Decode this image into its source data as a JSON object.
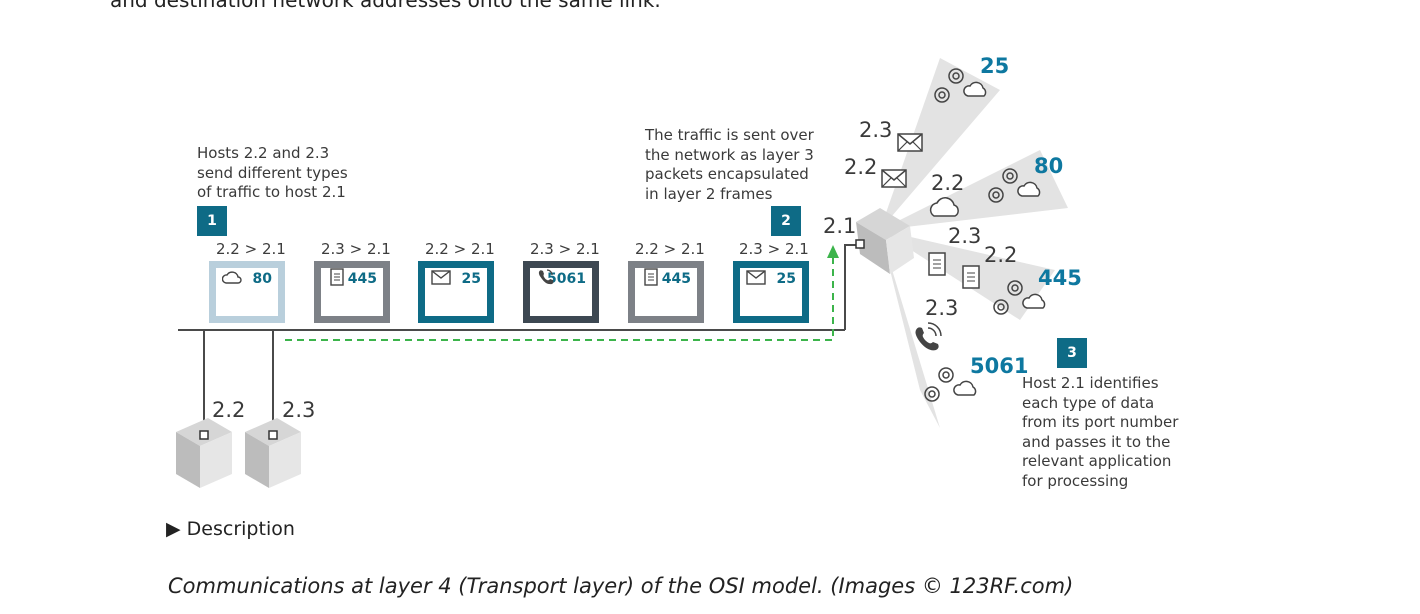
{
  "intro": "and destination network addresses onto the same link.",
  "annotations": {
    "step1": "Hosts 2.2 and 2.3\nsend different types\nof traffic to host 2.1",
    "step2": "The traffic is sent over\nthe network as layer 3\npackets encapsulated\nin layer 2 frames",
    "step3": "Host 2.1 identifies\neach type of data\nfrom its port number\nand passes it to the\nrelevant application\nfor processing"
  },
  "badges": [
    "1",
    "2",
    "3"
  ],
  "frames": [
    {
      "header": "2.2 > 2.1",
      "port": "80",
      "icon": "cloud-icon",
      "color": "#b9cfdc"
    },
    {
      "header": "2.3 > 2.1",
      "port": "445",
      "icon": "document-icon",
      "color": "#7d8187"
    },
    {
      "header": "2.2 > 2.1",
      "port": "25",
      "icon": "envelope-icon",
      "color": "#0e6b86"
    },
    {
      "header": "2.3 > 2.1",
      "port": "5061",
      "icon": "phone-icon",
      "color": "#3d4852"
    },
    {
      "header": "2.2 > 2.1",
      "port": "445",
      "icon": "document-icon",
      "color": "#7d8187"
    },
    {
      "header": "2.3 > 2.1",
      "port": "25",
      "icon": "envelope-icon",
      "color": "#0e6b86"
    }
  ],
  "hosts": {
    "host22": "2.2",
    "host23": "2.3",
    "host21": "2.1"
  },
  "fan": {
    "label_23_mail": "2.3",
    "label_22_mail": "2.2",
    "label_22_cloud": "2.2",
    "label_23_doc": "2.3",
    "label_22_doc": "2.2",
    "label_23_phone": "2.3",
    "port_25": "25",
    "port_80": "80",
    "port_445": "445",
    "port_5061": "5061"
  },
  "description_toggle": "Description",
  "caption": "Communications at layer 4 (Transport layer) of the OSI model. (Images © 123RF.com)",
  "colors": {
    "accent": "#0e6b86",
    "port_text": "#0e78a0",
    "dashed_path": "#3cb44b",
    "fan_gray": "#e3e3e3"
  }
}
